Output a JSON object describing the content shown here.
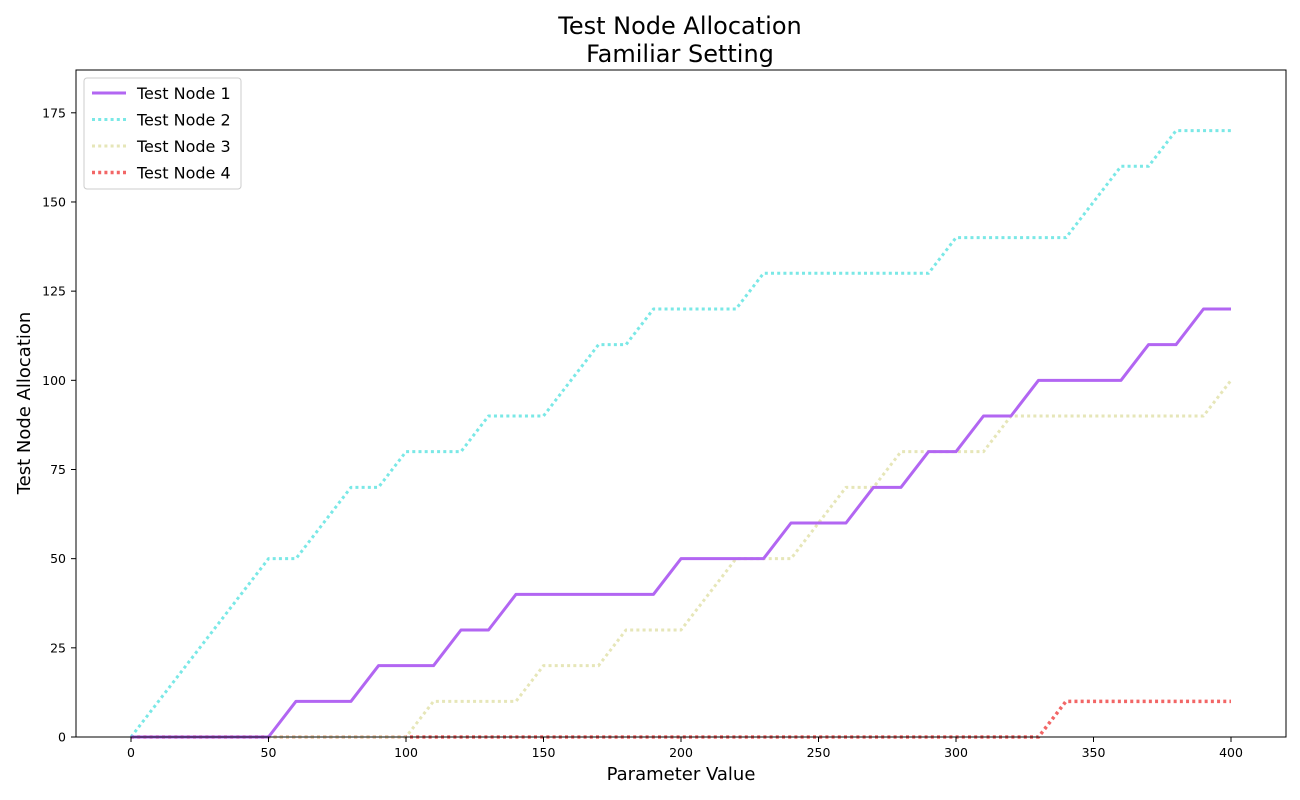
{
  "chart_data": {
    "type": "line",
    "title": "Test Node Allocation",
    "subtitle": "Familiar Setting",
    "xlabel": "Parameter Value",
    "ylabel": "Test Node Allocation",
    "xlim": [
      -20,
      420
    ],
    "ylim": [
      0,
      187
    ],
    "x_ticks": [
      0,
      50,
      100,
      150,
      200,
      250,
      300,
      350,
      400
    ],
    "y_ticks": [
      0,
      25,
      50,
      75,
      100,
      125,
      150,
      175
    ],
    "grid": false,
    "legend_position": "top-left",
    "x": [
      0,
      10,
      20,
      30,
      40,
      50,
      60,
      70,
      80,
      90,
      100,
      110,
      120,
      130,
      140,
      150,
      160,
      170,
      180,
      190,
      200,
      210,
      220,
      230,
      240,
      250,
      260,
      270,
      280,
      290,
      300,
      310,
      320,
      330,
      340,
      350,
      360,
      370,
      380,
      390,
      400
    ],
    "series": [
      {
        "name": "Test Node 1",
        "color": "#b266f2",
        "dash": "solid",
        "values": [
          0,
          0,
          0,
          0,
          0,
          0,
          10,
          10,
          10,
          20,
          20,
          20,
          30,
          30,
          40,
          40,
          40,
          40,
          40,
          40,
          50,
          50,
          50,
          50,
          60,
          60,
          60,
          70,
          70,
          80,
          80,
          90,
          90,
          100,
          100,
          100,
          100,
          110,
          110,
          120,
          120
        ]
      },
      {
        "name": "Test Node 2",
        "color": "#7ae8e6",
        "dash": "dotted",
        "values": [
          0,
          10,
          20,
          30,
          40,
          50,
          50,
          60,
          70,
          70,
          80,
          80,
          80,
          90,
          90,
          90,
          100,
          110,
          110,
          120,
          120,
          120,
          120,
          130,
          130,
          130,
          130,
          130,
          130,
          130,
          140,
          140,
          140,
          140,
          140,
          150,
          160,
          160,
          170,
          170,
          170
        ]
      },
      {
        "name": "Test Node 3",
        "color": "#e6e6b8",
        "dash": "dotted",
        "values": [
          0,
          0,
          0,
          0,
          0,
          0,
          0,
          0,
          0,
          0,
          0,
          10,
          10,
          10,
          10,
          20,
          20,
          20,
          30,
          30,
          30,
          40,
          50,
          50,
          50,
          60,
          70,
          70,
          80,
          80,
          80,
          80,
          90,
          90,
          90,
          90,
          90,
          90,
          90,
          90,
          100
        ]
      },
      {
        "name": "Test Node 4",
        "color": "#f26666",
        "dash": "dotted",
        "values": [
          0,
          0,
          0,
          0,
          0,
          0,
          0,
          0,
          0,
          0,
          0,
          0,
          0,
          0,
          0,
          0,
          0,
          0,
          0,
          0,
          0,
          0,
          0,
          0,
          0,
          0,
          0,
          0,
          0,
          0,
          0,
          0,
          0,
          0,
          10,
          10,
          10,
          10,
          10,
          10,
          10
        ]
      }
    ]
  }
}
